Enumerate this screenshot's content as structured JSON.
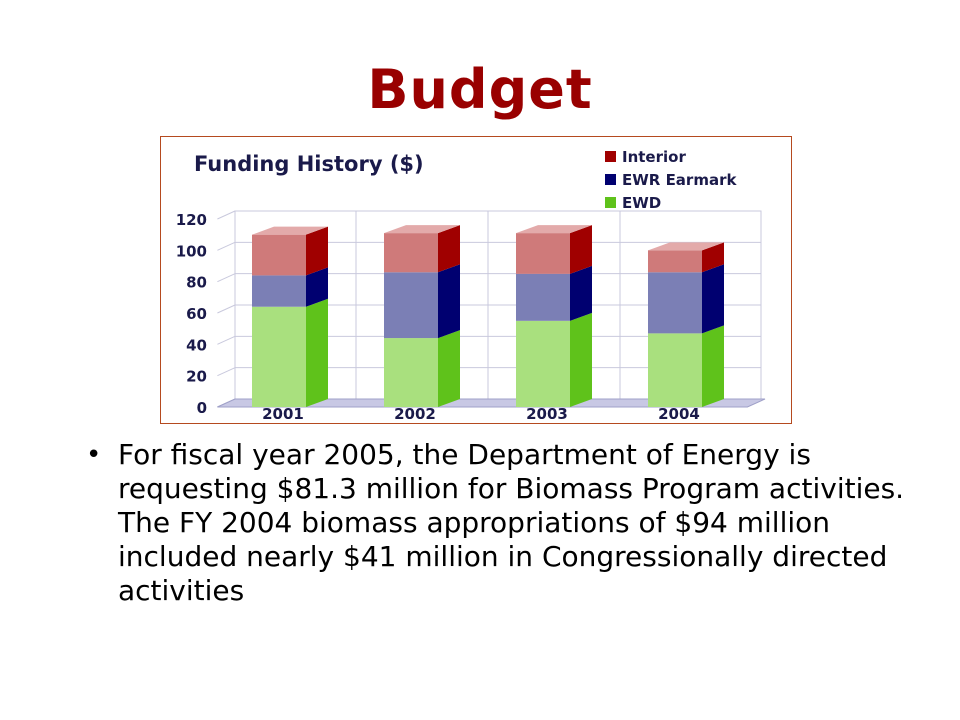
{
  "slide": {
    "title": "Budget",
    "bullet": "For fiscal year 2005, the Department of Energy is requesting $81.3 million for Biomass Program activities. The FY 2004 biomass appropriations of $94 million included nearly $41 million in Congressionally directed activities"
  },
  "chart_data": {
    "type": "bar",
    "stacked": true,
    "title": "Funding History ($)",
    "xlabel": "",
    "ylabel": "",
    "categories": [
      "2001",
      "2002",
      "2003",
      "2004"
    ],
    "ylim": [
      0,
      120
    ],
    "yticks": [
      0,
      20,
      40,
      60,
      80,
      100,
      120
    ],
    "grid": true,
    "legend_position": "top-right",
    "series": [
      {
        "name": "EWD",
        "values": [
          64,
          44,
          55,
          47
        ],
        "front": "#a9e07e",
        "side": "#5fc21b",
        "top": "#c7ecaa"
      },
      {
        "name": "EWR Earmark",
        "values": [
          20,
          42,
          30,
          39
        ],
        "front": "#7b7fb5",
        "side": "#000070",
        "top": "#a4a7cf"
      },
      {
        "name": "Interior",
        "values": [
          26,
          25,
          26,
          14
        ],
        "front": "#cf7a7a",
        "side": "#a00000",
        "top": "#e3aaaa"
      }
    ],
    "legend_order": [
      "Interior",
      "EWR Earmark",
      "EWD"
    ]
  }
}
